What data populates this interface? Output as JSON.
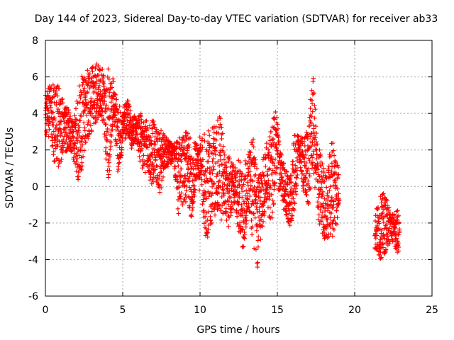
{
  "chart_data": {
    "type": "scatter",
    "title": "Day 144 of 2023, Sidereal Day-to-day VTEC variation (SDTVAR) for receiver ab33",
    "xlabel": "GPS time / hours",
    "ylabel": "SDTVAR / TECUs",
    "xlim": [
      0,
      25
    ],
    "ylim": [
      -6,
      8
    ],
    "xticks": [
      0,
      5,
      10,
      15,
      20,
      25
    ],
    "yticks": [
      -6,
      -4,
      -2,
      0,
      2,
      4,
      6,
      8
    ],
    "xtick_labels": [
      "0",
      "5",
      "10",
      "15",
      "20",
      "25"
    ],
    "ytick_labels": [
      "-6",
      "-4",
      "-2",
      "0",
      "2",
      "4",
      "6",
      "8"
    ],
    "grid": true,
    "marker": "+",
    "marker_color": "#ff0000",
    "series": [
      {
        "name": "SDTVAR",
        "color": "#ff0000",
        "envelope": [
          {
            "x": 0.0,
            "low": 2.8,
            "high": 5.0
          },
          {
            "x": 0.3,
            "low": 2.5,
            "high": 5.6
          },
          {
            "x": 0.6,
            "low": 1.2,
            "high": 5.8
          },
          {
            "x": 0.9,
            "low": 1.0,
            "high": 5.4
          },
          {
            "x": 1.2,
            "low": 2.0,
            "high": 4.6
          },
          {
            "x": 1.5,
            "low": 1.8,
            "high": 4.2
          },
          {
            "x": 1.8,
            "low": 1.5,
            "high": 3.5
          },
          {
            "x": 2.1,
            "low": 0.3,
            "high": 5.5
          },
          {
            "x": 2.4,
            "low": 1.0,
            "high": 6.2
          },
          {
            "x": 2.7,
            "low": 2.5,
            "high": 6.4
          },
          {
            "x": 3.0,
            "low": 3.0,
            "high": 6.5
          },
          {
            "x": 3.3,
            "low": 3.5,
            "high": 6.8
          },
          {
            "x": 3.6,
            "low": 4.0,
            "high": 6.6
          },
          {
            "x": 3.9,
            "low": 1.5,
            "high": 6.0
          },
          {
            "x": 4.1,
            "low": 0.0,
            "high": 6.7
          },
          {
            "x": 4.4,
            "low": 4.0,
            "high": 5.8
          },
          {
            "x": 4.7,
            "low": 0.5,
            "high": 4.5
          },
          {
            "x": 5.0,
            "low": 2.0,
            "high": 4.2
          },
          {
            "x": 5.3,
            "low": 3.0,
            "high": 5.0
          },
          {
            "x": 5.6,
            "low": 2.0,
            "high": 4.0
          },
          {
            "x": 5.9,
            "low": 2.5,
            "high": 3.8
          },
          {
            "x": 6.2,
            "low": 0.5,
            "high": 4.0
          },
          {
            "x": 6.5,
            "low": 0.8,
            "high": 3.6
          },
          {
            "x": 6.8,
            "low": -0.2,
            "high": 3.8
          },
          {
            "x": 7.1,
            "low": 0.5,
            "high": 3.5
          },
          {
            "x": 7.4,
            "low": -0.8,
            "high": 3.2
          },
          {
            "x": 7.7,
            "low": 1.0,
            "high": 2.8
          },
          {
            "x": 8.0,
            "low": 1.0,
            "high": 2.5
          },
          {
            "x": 8.3,
            "low": 1.5,
            "high": 2.3
          },
          {
            "x": 8.6,
            "low": -1.8,
            "high": 2.6
          },
          {
            "x": 8.9,
            "low": -1.2,
            "high": 2.9
          },
          {
            "x": 9.2,
            "low": -0.8,
            "high": 3.0
          },
          {
            "x": 9.5,
            "low": -2.0,
            "high": 2.4
          },
          {
            "x": 9.8,
            "low": 0.5,
            "high": 2.6
          },
          {
            "x": 10.1,
            "low": -1.0,
            "high": 2.8
          },
          {
            "x": 10.4,
            "low": -3.2,
            "high": 3.0
          },
          {
            "x": 10.7,
            "low": -2.2,
            "high": 3.2
          },
          {
            "x": 11.0,
            "low": -1.5,
            "high": 3.3
          },
          {
            "x": 11.3,
            "low": -2.0,
            "high": 4.0
          },
          {
            "x": 11.6,
            "low": -1.5,
            "high": 2.0
          },
          {
            "x": 11.9,
            "low": -2.4,
            "high": 1.6
          },
          {
            "x": 12.2,
            "low": -1.0,
            "high": 1.2
          },
          {
            "x": 12.5,
            "low": -2.5,
            "high": 1.5
          },
          {
            "x": 12.8,
            "low": -3.8,
            "high": 1.2
          },
          {
            "x": 13.1,
            "low": -1.2,
            "high": 1.8
          },
          {
            "x": 13.4,
            "low": -3.0,
            "high": 3.2
          },
          {
            "x": 13.7,
            "low": -4.8,
            "high": 0.8
          },
          {
            "x": 14.0,
            "low": -2.5,
            "high": 1.5
          },
          {
            "x": 14.3,
            "low": -1.0,
            "high": 2.4
          },
          {
            "x": 14.6,
            "low": -2.2,
            "high": 3.2
          },
          {
            "x": 14.9,
            "low": 0.0,
            "high": 4.5
          },
          {
            "x": 15.2,
            "low": -0.5,
            "high": 2.0
          },
          {
            "x": 15.5,
            "low": -1.8,
            "high": 1.0
          },
          {
            "x": 15.8,
            "low": -2.2,
            "high": 0.5
          },
          {
            "x": 16.1,
            "low": -1.5,
            "high": 2.8
          },
          {
            "x": 16.4,
            "low": 1.5,
            "high": 2.8
          },
          {
            "x": 16.7,
            "low": -0.5,
            "high": 2.6
          },
          {
            "x": 17.0,
            "low": -1.2,
            "high": 3.5
          },
          {
            "x": 17.3,
            "low": 1.0,
            "high": 6.2
          },
          {
            "x": 17.6,
            "low": -1.8,
            "high": 2.5
          },
          {
            "x": 17.9,
            "low": -2.8,
            "high": 1.5
          },
          {
            "x": 18.2,
            "low": -3.0,
            "high": 0.5
          },
          {
            "x": 18.5,
            "low": -2.8,
            "high": 2.8
          },
          {
            "x": 18.8,
            "low": -2.5,
            "high": 2.2
          },
          {
            "x": 19.0,
            "low": -1.0,
            "high": 0.8
          },
          {
            "x": 21.3,
            "low": -3.5,
            "high": -1.5
          },
          {
            "x": 21.6,
            "low": -4.0,
            "high": -0.6
          },
          {
            "x": 21.9,
            "low": -3.8,
            "high": -0.3
          },
          {
            "x": 22.2,
            "low": -3.2,
            "high": -1.0
          },
          {
            "x": 22.5,
            "low": -3.0,
            "high": -1.5
          },
          {
            "x": 22.8,
            "low": -3.8,
            "high": -1.2
          },
          {
            "x": 22.9,
            "low": -3.5,
            "high": -2.0
          }
        ]
      }
    ]
  }
}
